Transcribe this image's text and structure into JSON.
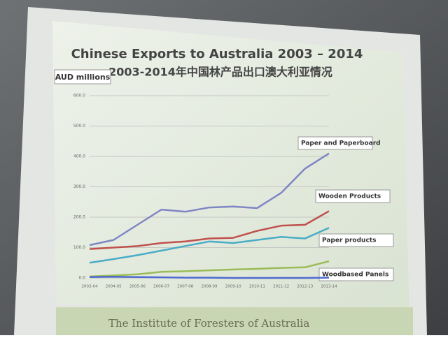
{
  "chart_data": {
    "type": "line",
    "title": "Chinese Exports to Australia 2003 – 2014",
    "subtitle": "2003-2014年中国林产品出口澳大利亚情况",
    "y_label": "AUD millions",
    "footer": "The Institute of Foresters of Australia",
    "categories": [
      "2003-04",
      "2004-05",
      "2005-06",
      "2006-07",
      "2007-08",
      "2008-09",
      "2009-10",
      "2010-11",
      "2011-12",
      "2012-13",
      "2013-14"
    ],
    "series": [
      {
        "name": "Paper and Paperboard",
        "color": "#7f86c4",
        "values": [
          108,
          125,
          175,
          225,
          218,
          232,
          235,
          230,
          280,
          360,
          410
        ]
      },
      {
        "name": "Wooden Products",
        "color": "#c0504d",
        "values": [
          95,
          100,
          105,
          115,
          120,
          130,
          132,
          155,
          172,
          175,
          220
        ]
      },
      {
        "name": "Paper products",
        "color": "#4bacc6",
        "values": [
          50,
          62,
          75,
          90,
          105,
          120,
          115,
          125,
          135,
          130,
          165
        ]
      },
      {
        "name": "Woodbased Panels",
        "color": "#9bbb59",
        "values": [
          5,
          8,
          12,
          20,
          22,
          25,
          28,
          30,
          33,
          35,
          55
        ]
      },
      {
        "color": "#4f6bd0",
        "values": [
          3,
          4,
          3,
          2,
          1,
          1,
          0,
          0,
          0,
          0,
          1
        ]
      }
    ],
    "ylim": [
      0,
      600
    ],
    "yticks": [
      {
        "value": 0,
        "label": "0.0"
      },
      {
        "value": 100,
        "label": "100.0"
      },
      {
        "value": 200,
        "label": "200.0"
      },
      {
        "value": 300,
        "label": "300.0"
      },
      {
        "value": 400,
        "label": "400.0"
      },
      {
        "value": 500,
        "label": "500.0"
      },
      {
        "value": 600,
        "label": "600.0"
      }
    ],
    "grid": true
  }
}
